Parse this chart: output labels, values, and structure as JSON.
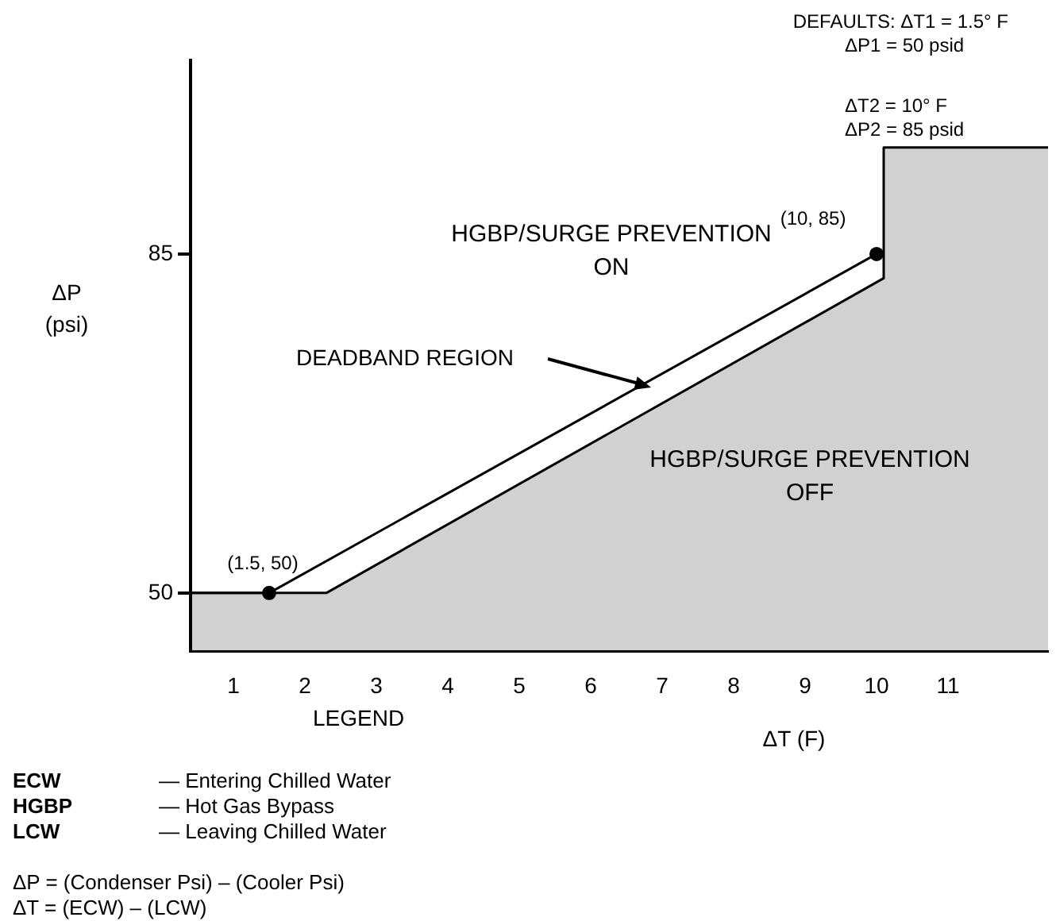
{
  "chart_data": {
    "type": "area",
    "xlabel": "ΔT (F)",
    "ylabel": "ΔP (psi)",
    "xlim": [
      0.4,
      12.4
    ],
    "ylim": [
      44,
      105
    ],
    "xticks": [
      1,
      2,
      3,
      4,
      5,
      6,
      7,
      8,
      9,
      10,
      11
    ],
    "yticks": [
      50,
      85
    ],
    "grid": false,
    "legend": false,
    "series": [
      {
        "color": "#000000",
        "x": [
          0.4,
          2.3,
          10.1,
          10.1,
          12.4
        ],
        "values": [
          50,
          50,
          82.5,
          96,
          96
        ]
      },
      {
        "type": "line",
        "color": "#000000",
        "x": [
          0.4,
          1.5,
          10,
          10.1
        ],
        "values": [
          50,
          50,
          85,
          85
        ]
      },
      {
        "type": "scatter",
        "color": "#000000",
        "marker": "circle",
        "x": [
          1.5,
          10
        ],
        "values": [
          50,
          85
        ]
      }
    ],
    "annotations": [
      "DEFAULTS: ΔT1 = 1.5° F",
      "ΔP1 = 50 psid",
      "ΔT2 = 10° F",
      "ΔP2 = 85 psid",
      "HGBP/SURGE PREVENTION\nON",
      "DEADBAND REGION",
      "HGBP/SURGE PREVENTION\nOFF",
      {
        "text": "(1.5, 50)",
        "x": 1.5,
        "y": 50
      },
      {
        "text": "(10, 85)",
        "x": 10,
        "y": 85
      },
      "LEGEND",
      "ECW — Entering Chilled Water",
      "HGBP — Hot Gas Bypass",
      "LCW — Leaving Chilled Water",
      "ΔP = (Condenser Psi) – (Cooler Psi)",
      "ΔT = (ECW) – (LCW)"
    ]
  }
}
